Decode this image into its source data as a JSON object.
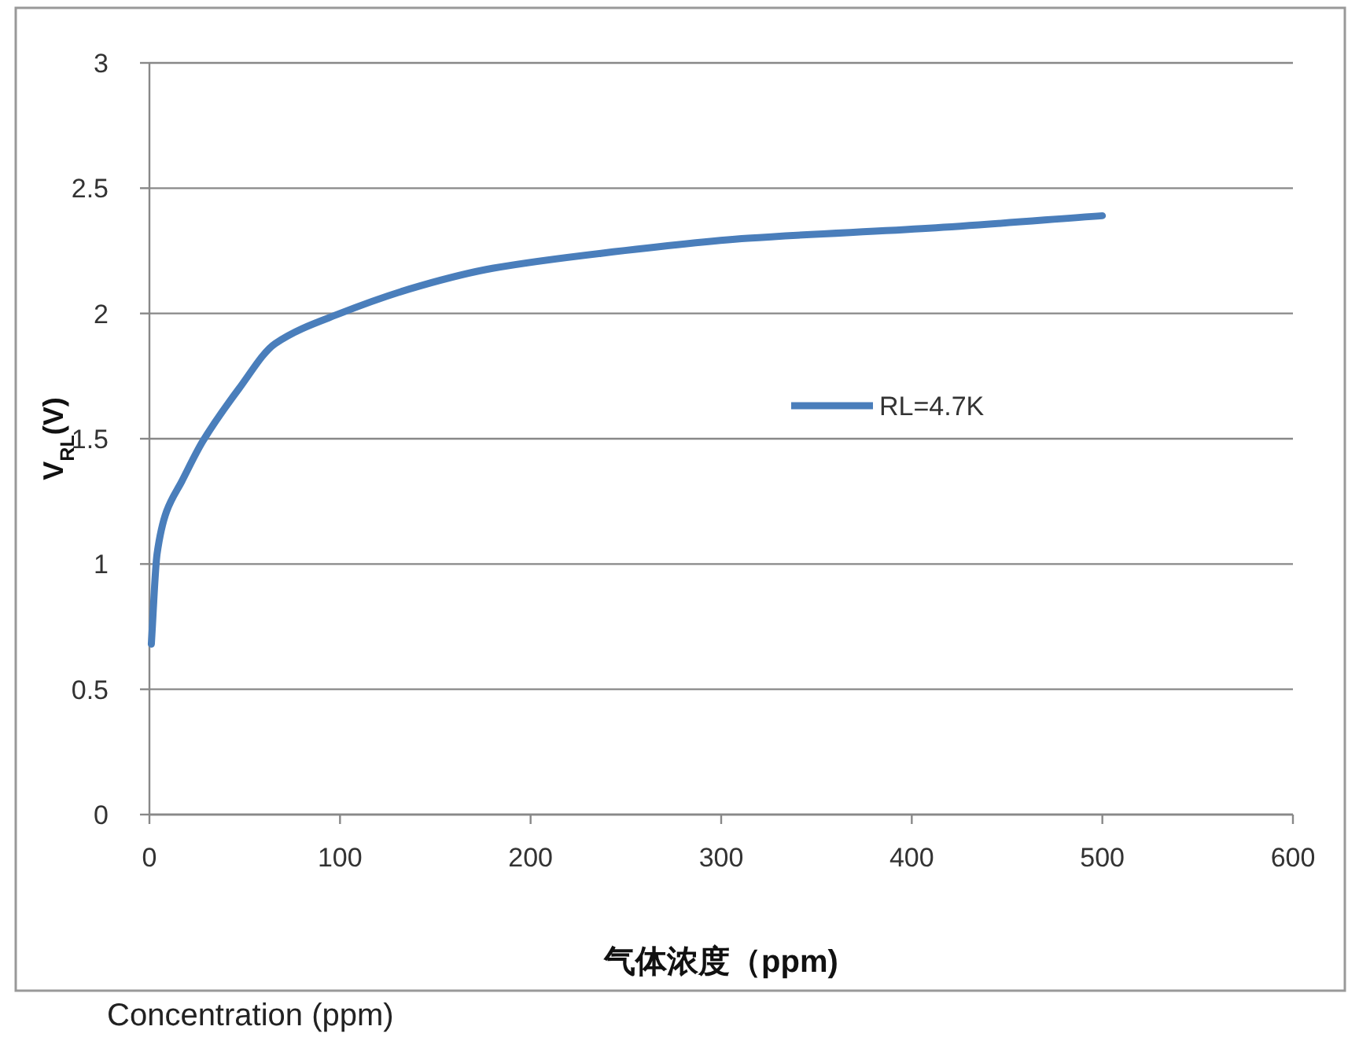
{
  "chart_data": {
    "type": "line",
    "xlabel": "气体浓度（ppm)",
    "ylabel": "V$_{RL}$(V)",
    "series": [
      {
        "name": "RL=4.7K",
        "color": "#4a7ebb",
        "x": [
          1,
          4,
          9,
          17,
          28,
          47,
          66,
          100,
          142,
          180,
          237,
          314,
          409,
          500
        ],
        "values": [
          0.68,
          1.04,
          1.21,
          1.33,
          1.49,
          1.7,
          1.88,
          2.0,
          2.11,
          2.18,
          2.24,
          2.3,
          2.34,
          2.39
        ]
      }
    ],
    "xlim": [
      0,
      600
    ],
    "xticks": [
      0,
      100,
      200,
      300,
      400,
      500,
      600
    ],
    "ylim": [
      0,
      3
    ],
    "yticks": [
      0,
      0.5,
      1,
      1.5,
      2,
      2.5,
      3
    ],
    "grid": "y",
    "legend": "right",
    "marker": "none",
    "line_style": "solid",
    "annotations": [
      "Concentration (ppm)"
    ]
  }
}
